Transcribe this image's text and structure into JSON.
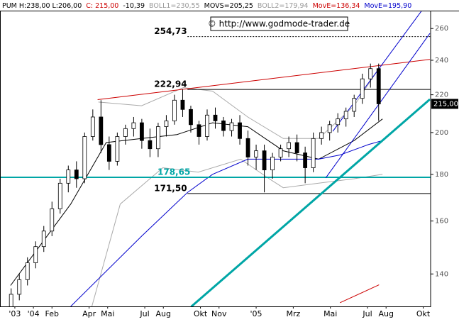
{
  "chart_data": {
    "type": "candlestick",
    "header_items": [
      {
        "text": "PUM H:238,00 L:206,00",
        "color": "#000000"
      },
      {
        "text": "C: 215,00",
        "color": "#cc0000"
      },
      {
        "text": "-10,39",
        "color": "#000000"
      },
      {
        "text": "BOLL1=230,55",
        "color": "#999999"
      },
      {
        "text": "MOVS=205,25",
        "color": "#000000"
      },
      {
        "text": "BOLL2=179,94",
        "color": "#999999"
      },
      {
        "text": "MovE=136,34",
        "color": "#cc0000"
      },
      {
        "text": "MovE=195,90",
        "color": "#0000cc"
      }
    ],
    "source": "© http://www.godmode-trader.de",
    "log_scale": true,
    "grid": false,
    "xlim": [
      -1.3,
      21.9
    ],
    "ylim": [
      129,
      272
    ],
    "xticks": [
      {
        "value": -0.5,
        "label": "'03"
      },
      {
        "value": 0.5,
        "label": "'04"
      },
      {
        "value": 1.5,
        "label": "Feb"
      },
      {
        "value": 3.5,
        "label": "Apr"
      },
      {
        "value": 4.5,
        "label": "Mai"
      },
      {
        "value": 6.5,
        "label": "Jul"
      },
      {
        "value": 7.5,
        "label": "Aug"
      },
      {
        "value": 9.5,
        "label": "Okt"
      },
      {
        "value": 10.5,
        "label": "Nov"
      },
      {
        "value": 12.5,
        "label": "'05"
      },
      {
        "value": 14.5,
        "label": "Mrz"
      },
      {
        "value": 16.5,
        "label": "Mai"
      },
      {
        "value": 18.5,
        "label": "Jul"
      },
      {
        "value": 19.5,
        "label": "Aug"
      },
      {
        "value": 21.5,
        "label": "Okt"
      }
    ],
    "yticks": [
      140,
      160,
      180,
      200,
      220,
      240,
      260
    ],
    "up_color": "#ffffff",
    "down_color": "#000000",
    "x": [
      -0.7,
      -0.26,
      0.18,
      0.62,
      1.06,
      1.5,
      1.94,
      2.38,
      2.82,
      3.26,
      3.7,
      4.14,
      4.58,
      5.02,
      5.46,
      5.9,
      6.34,
      6.78,
      7.22,
      7.66,
      8.1,
      8.54,
      8.98,
      9.42,
      9.86,
      10.3,
      10.74,
      11.18,
      11.62,
      12.06,
      12.5,
      12.94,
      13.38,
      13.82,
      14.26,
      14.7,
      15.14,
      15.58,
      16.02,
      16.46,
      16.9,
      17.34,
      17.78,
      18.22,
      18.66,
      19.1
    ],
    "open": [
      128,
      133,
      138,
      144,
      150,
      156,
      165,
      176,
      182,
      178,
      198,
      208,
      194,
      186,
      198,
      202,
      205,
      196,
      192,
      203,
      206,
      217,
      212,
      204,
      198,
      209,
      206,
      201,
      205,
      197,
      188,
      191,
      182,
      188,
      192,
      195,
      190,
      183,
      197,
      200,
      204,
      207,
      211,
      218,
      229,
      235
    ],
    "high": [
      135,
      140,
      146,
      152,
      158,
      168,
      178,
      184,
      186,
      200,
      212,
      217,
      198,
      200,
      204,
      208,
      207,
      202,
      205,
      209,
      220,
      223,
      214,
      206,
      212,
      213,
      208,
      207,
      209,
      201,
      194,
      194,
      190,
      194,
      198,
      199,
      193,
      200,
      203,
      206,
      210,
      213,
      220,
      232,
      238,
      238
    ],
    "low": [
      129,
      131,
      136,
      142,
      148,
      154,
      163,
      172,
      174,
      176,
      196,
      190,
      182,
      184,
      194,
      198,
      192,
      188,
      188,
      198,
      204,
      208,
      200,
      194,
      196,
      202,
      198,
      198,
      194,
      184,
      182,
      172,
      178,
      186,
      188,
      186,
      176,
      181,
      194,
      196,
      200,
      203,
      208,
      215,
      224,
      206
    ],
    "close": [
      133,
      138,
      144,
      150,
      156,
      165,
      176,
      182,
      178,
      198,
      208,
      194,
      186,
      198,
      202,
      205,
      196,
      192,
      203,
      206,
      217,
      212,
      204,
      198,
      209,
      206,
      201,
      205,
      197,
      188,
      191,
      182,
      188,
      192,
      195,
      190,
      183,
      197,
      200,
      204,
      207,
      211,
      218,
      229,
      235,
      215
    ],
    "overlays": [
      {
        "color": "#aaaaaa",
        "width": 1,
        "x": [
          4.0,
          6.33,
          8.58,
          10.15,
          12.05,
          13.96,
          15.87,
          17.78,
          18.92
        ],
        "values": [
          216,
          214,
          224,
          222,
          208,
          197,
          197,
          214,
          232
        ]
      },
      {
        "color": "#aaaaaa",
        "width": 1,
        "x": [
          3.65,
          5.18,
          7.47,
          9.38,
          11.67,
          13.2,
          13.96,
          15.87,
          17.78,
          19.31
        ],
        "values": [
          129,
          167,
          183,
          181,
          187,
          178,
          174,
          176,
          178,
          180
        ]
      },
      {
        "color": "#000000",
        "width": 1,
        "x": [
          -0.73,
          2.51,
          4.42,
          6.33,
          8.24,
          10.15,
          12.05,
          13.96,
          15.87,
          17.78,
          19.31
        ],
        "values": [
          136,
          167,
          195,
          197,
          199,
          205,
          203,
          191,
          187,
          196,
          207
        ]
      },
      {
        "color": "#0000cc",
        "width": 1,
        "x": [
          2.51,
          6.33,
          8.81,
          10.15,
          12.05,
          13.96,
          15.87,
          17.02,
          18.54,
          19.31
        ],
        "values": [
          129,
          154,
          172,
          180,
          187,
          187,
          187,
          189,
          194,
          196
        ]
      },
      {
        "color": "#cc0000",
        "width": 1,
        "x": [
          17.02,
          19.12
        ],
        "values": [
          130.2,
          136.2
        ]
      }
    ],
    "trendlines": [
      {
        "color": "#cc0000",
        "width": 1,
        "x": [
          3.96,
          21.86
        ],
        "y": [
          217.3,
          240.5
        ]
      },
      {
        "color": "#0000cc",
        "width": 1,
        "x": [
          16.63,
          21.86
        ],
        "y": [
          200.6,
          279.7
        ]
      },
      {
        "color": "#0000cc",
        "width": 1,
        "x": [
          16.25,
          21.86
        ],
        "y": [
          178.4,
          256.8
        ]
      },
      {
        "color": "#00a6a6",
        "width": 3,
        "x": [
          9.0,
          21.86
        ],
        "y": [
          128.9,
          217.5
        ]
      }
    ],
    "levels": [
      {
        "value": 254.73,
        "label": "254,73",
        "x_from": 8.8,
        "color": "#000000",
        "dashed": true
      },
      {
        "value": 222.94,
        "label": "222,94",
        "x_from": 8.8,
        "color": "#000000",
        "dashed": false
      },
      {
        "value": 178.65,
        "label": "178,65",
        "color": "#00a6a6",
        "dashed": false
      },
      {
        "value": 171.5,
        "label": "171,50",
        "x_from": 8.8,
        "color": "#000000",
        "dashed": false
      }
    ],
    "last_price": {
      "value": 215,
      "label": "215,00"
    }
  }
}
